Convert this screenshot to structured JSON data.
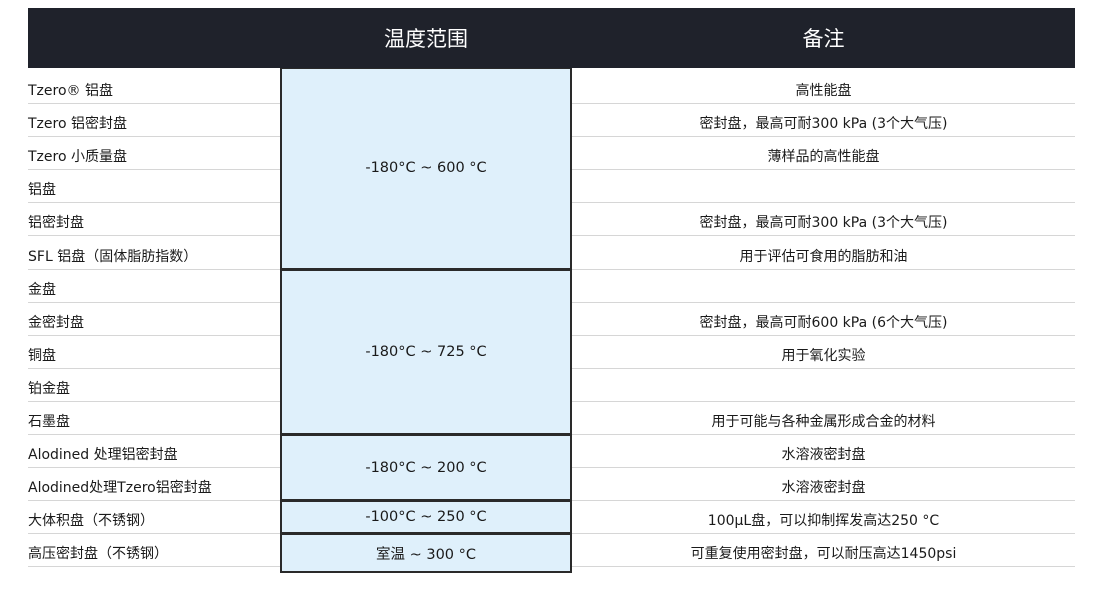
{
  "header": {
    "col_temp": "温度范围",
    "col_notes": "备注"
  },
  "rows": [
    {
      "name": "Tzero® 铝盘",
      "note": "高性能盘"
    },
    {
      "name": "Tzero 铝密封盘",
      "note": "密封盘，最高可耐300 kPa (3个大气压)"
    },
    {
      "name": "Tzero 小质量盘",
      "note": "薄样品的高性能盘"
    },
    {
      "name": "铝盘",
      "note": ""
    },
    {
      "name": "铝密封盘",
      "note": "密封盘，最高可耐300 kPa (3个大气压)"
    },
    {
      "name": "SFL 铝盘（固体脂肪指数）",
      "note": "用于评估可食用的脂肪和油"
    },
    {
      "name": "金盘",
      "note": ""
    },
    {
      "name": "金密封盘",
      "note": "密封盘，最高可耐600 kPa (6个大气压)"
    },
    {
      "name": "铜盘",
      "note": "用于氧化实验"
    },
    {
      "name": "铂金盘",
      "note": ""
    },
    {
      "name": "石墨盘",
      "note": "用于可能与各种金属形成合金的材料"
    },
    {
      "name": "Alodined 处理铝密封盘",
      "note": "水溶液密封盘"
    },
    {
      "name": "Alodined处理Tzero铝密封盘",
      "note": "水溶液密封盘"
    },
    {
      "name": "大体积盘（不锈钢）",
      "note": "100μL盘，可以抑制挥发高达250 °C"
    },
    {
      "name": "高压密封盘（不锈钢）",
      "note": "可重复使用密封盘，可以耐压高达1450psi"
    }
  ],
  "temp_groups": [
    {
      "range": "-180°C ~ 600 °C",
      "rows": [
        0,
        5
      ]
    },
    {
      "range": "-180°C ~ 725 °C",
      "rows": [
        6,
        10
      ]
    },
    {
      "range": "-180°C ~ 200 °C",
      "rows": [
        11,
        12
      ]
    },
    {
      "range": "-100°C ~ 250 °C",
      "rows": [
        13,
        13
      ]
    },
    {
      "range": "室温 ~ 300 °C",
      "rows": [
        14,
        14
      ]
    }
  ]
}
